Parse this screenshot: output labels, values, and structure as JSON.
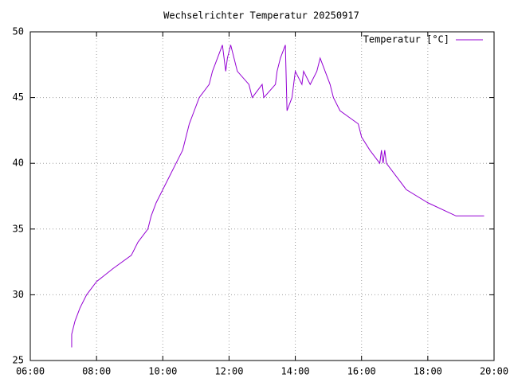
{
  "chart_data": {
    "type": "line",
    "title": "Wechselrichter Temperatur 20250917",
    "x": [
      7.25,
      7.25,
      7.35,
      7.5,
      7.7,
      8.0,
      8.5,
      9.05,
      9.25,
      9.55,
      9.65,
      9.8,
      10.0,
      10.2,
      10.4,
      10.6,
      10.7,
      10.8,
      10.95,
      11.1,
      11.4,
      11.5,
      11.65,
      11.8,
      11.9,
      11.95,
      12.05,
      12.15,
      12.25,
      12.6,
      12.7,
      13.0,
      13.05,
      13.4,
      13.45,
      13.55,
      13.7,
      13.75,
      13.9,
      13.95,
      14.0,
      14.2,
      14.25,
      14.45,
      14.65,
      14.75,
      14.9,
      15.05,
      15.15,
      15.35,
      15.9,
      16.0,
      16.25,
      16.55,
      16.6,
      16.65,
      16.7,
      16.75,
      17.05,
      17.35,
      18.0,
      18.85,
      19.7
    ],
    "series": [
      {
        "name": "Temperatur [°C]",
        "color": "#9400d3",
        "values": [
          26,
          27,
          28,
          29,
          30,
          31,
          32,
          33,
          34,
          35,
          36,
          37,
          38,
          39,
          40,
          41,
          42,
          43,
          44,
          45,
          46,
          47,
          48,
          49,
          47,
          48,
          49,
          48,
          47,
          46,
          45,
          46,
          45,
          46,
          47,
          48,
          49,
          44,
          45,
          46,
          47,
          46,
          47,
          46,
          47,
          48,
          47,
          46,
          45,
          44,
          43,
          42,
          41,
          40,
          41,
          40,
          41,
          40,
          39,
          38,
          37,
          36,
          36
        ]
      }
    ],
    "xlim": [
      6,
      20
    ],
    "xticks": [
      {
        "value": 6,
        "label": "06:00"
      },
      {
        "value": 8,
        "label": "08:00"
      },
      {
        "value": 10,
        "label": "10:00"
      },
      {
        "value": 12,
        "label": "12:00"
      },
      {
        "value": 14,
        "label": "14:00"
      },
      {
        "value": 16,
        "label": "16:00"
      },
      {
        "value": 18,
        "label": "18:00"
      },
      {
        "value": 20,
        "label": "20:00"
      }
    ],
    "ylim": [
      25,
      50
    ],
    "yticks": [
      25,
      30,
      35,
      40,
      45,
      50
    ],
    "grid": true,
    "legend": "top-right"
  }
}
